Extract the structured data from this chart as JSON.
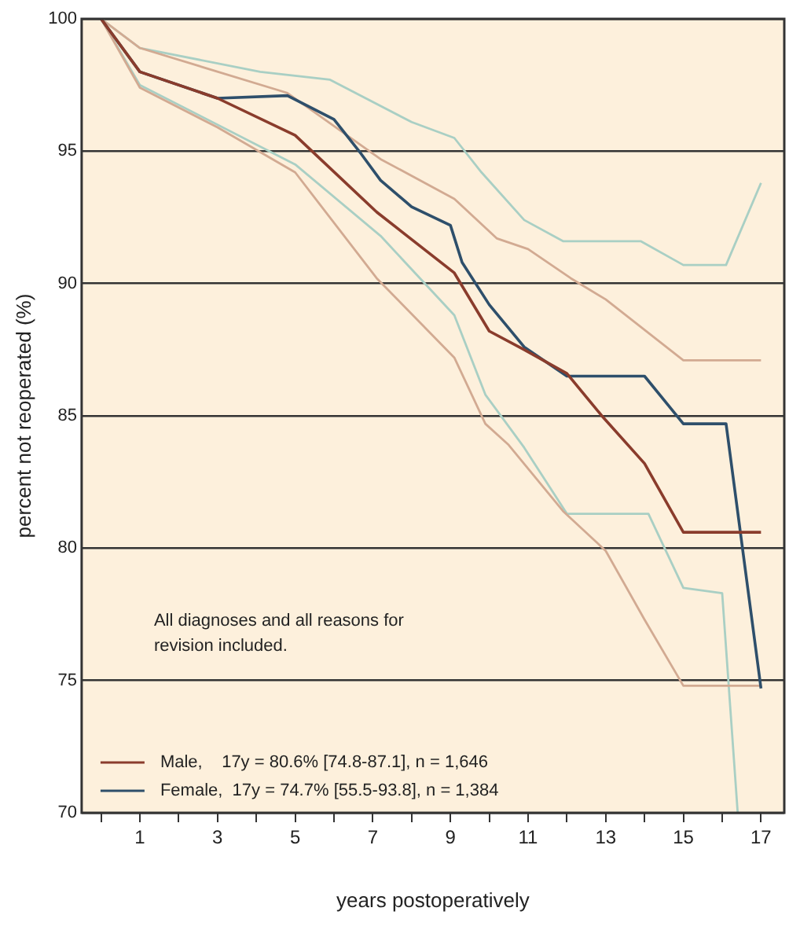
{
  "chart_data": {
    "type": "line",
    "xlabel": "years postoperatively",
    "ylabel": "percent not reoperated (%)",
    "annotations": [
      "All diagnoses and all reasons for revision included."
    ],
    "xlim": [
      -0.5,
      17.6
    ],
    "ylim": [
      70,
      100
    ],
    "xticks": [
      {
        "value": 0,
        "label": null
      },
      1,
      {
        "value": 2,
        "label": null
      },
      3,
      {
        "value": 4,
        "label": null
      },
      5,
      {
        "value": 6,
        "label": null
      },
      7,
      {
        "value": 8,
        "label": null
      },
      9,
      {
        "value": 10,
        "label": null
      },
      11,
      {
        "value": 12,
        "label": null
      },
      13,
      {
        "value": 14,
        "label": null
      },
      15,
      {
        "value": 16,
        "label": null
      },
      17
    ],
    "yticks": [
      70,
      75,
      80,
      85,
      90,
      95,
      100
    ],
    "grid": "y",
    "legend": "bottom left",
    "marker": "none",
    "line_style": "solid",
    "series": [
      {
        "name": "Male,    17y = 80.6% [74.8-87.1], n = 1,646",
        "color": "#8a3c2c",
        "x": [
          0,
          1,
          3,
          5,
          7.1,
          9.1,
          10,
          10.9,
          12,
          12.9,
          14,
          15,
          17
        ],
        "values": [
          100,
          98,
          97,
          95.6,
          92.7,
          90.4,
          88.2,
          87.5,
          86.6,
          85,
          83.2,
          80.6,
          80.6
        ]
      },
      {
        "name": "Female,  17y = 74.7% [55.5-93.8], n = 1,384",
        "color": "#2e4f6b",
        "x": [
          0,
          1,
          3,
          4.8,
          6,
          6.7,
          7.2,
          8,
          9,
          9.3,
          10,
          10.9,
          12,
          14,
          15,
          16.1,
          17
        ],
        "values": [
          100,
          98,
          97,
          97.1,
          96.2,
          94.9,
          93.9,
          92.9,
          92.2,
          90.8,
          89.2,
          87.6,
          86.5,
          86.5,
          84.7,
          84.7,
          74.7
        ]
      },
      {
        "color": "#d2aa92",
        "x": [
          0,
          1,
          4.8,
          7.2,
          9.1,
          10.2,
          11,
          12.1,
          13,
          15,
          17
        ],
        "values": [
          100,
          98.9,
          97.2,
          94.7,
          93.2,
          91.7,
          91.3,
          90.2,
          89.4,
          87.1,
          87.1
        ]
      },
      {
        "color": "#d2aa92",
        "x": [
          0,
          1,
          3,
          5,
          7.1,
          9.1,
          9.9,
          10.5,
          11.9,
          13,
          14,
          15,
          17
        ],
        "values": [
          100,
          97.4,
          95.9,
          94.2,
          90.2,
          87.2,
          84.7,
          83.9,
          81.4,
          79.9,
          77.3,
          74.8,
          74.8
        ]
      },
      {
        "color": "#a9cfc4",
        "x": [
          0,
          1,
          4.1,
          5.9,
          8,
          9.1,
          9.8,
          10.9,
          11.9,
          13.9,
          15,
          16.1,
          17
        ],
        "values": [
          100,
          98.9,
          98,
          97.7,
          96.1,
          95.5,
          94.2,
          92.4,
          91.6,
          91.6,
          90.7,
          90.7,
          93.8
        ]
      },
      {
        "color": "#a9cfc4",
        "x": [
          0,
          1,
          5,
          7.2,
          9.1,
          9.9,
          10.9,
          12,
          14.1,
          15,
          16,
          16.4
        ],
        "values": [
          100,
          97.5,
          94.5,
          91.8,
          88.8,
          85.8,
          83.8,
          81.3,
          81.3,
          78.5,
          78.3,
          70
        ]
      }
    ]
  }
}
